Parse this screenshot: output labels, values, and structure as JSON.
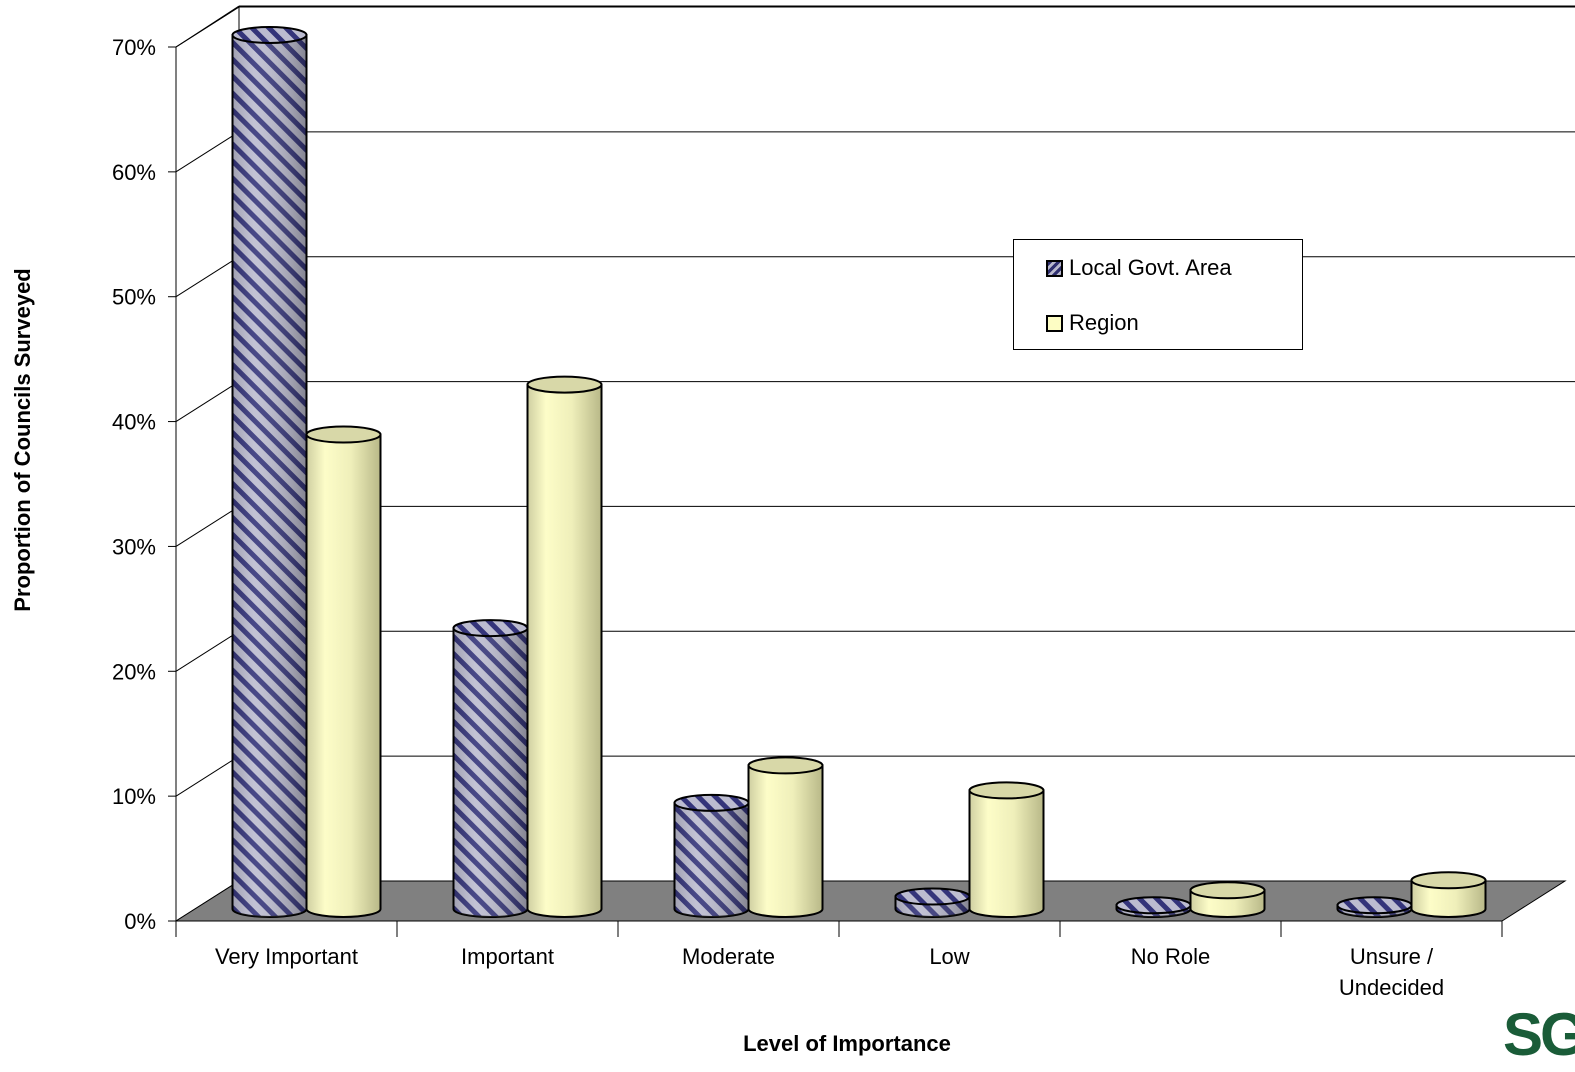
{
  "chart_data": {
    "type": "bar",
    "title": "",
    "xlabel": "Level of Importance",
    "ylabel": "Proportion of Councils Surveyed",
    "ylim": [
      0,
      70
    ],
    "yticks": [
      "0%",
      "10%",
      "20%",
      "30%",
      "40%",
      "50%",
      "60%",
      "70%"
    ],
    "categories": [
      "Very Important",
      "Important",
      "Moderate",
      "Low",
      "No Role",
      "Unsure / Undecided"
    ],
    "series": [
      {
        "name": "Local Govt. Area",
        "values": [
          70,
          22.5,
          8.5,
          1,
          0.3,
          0.3
        ]
      },
      {
        "name": "Region",
        "values": [
          38,
          42,
          11.5,
          9.5,
          1.5,
          2.3
        ]
      }
    ],
    "grid": true,
    "legend_position": "right",
    "style": "3d-cylinder",
    "colors": {
      "local": "#3a3a78",
      "local_light": "#b8b8cc",
      "region": "#fdfdc4",
      "region_dark": "#c8c89a",
      "floor": "#808080"
    }
  },
  "legend": {
    "items": [
      "Local Govt. Area",
      "Region"
    ]
  },
  "logo_text": "SG"
}
